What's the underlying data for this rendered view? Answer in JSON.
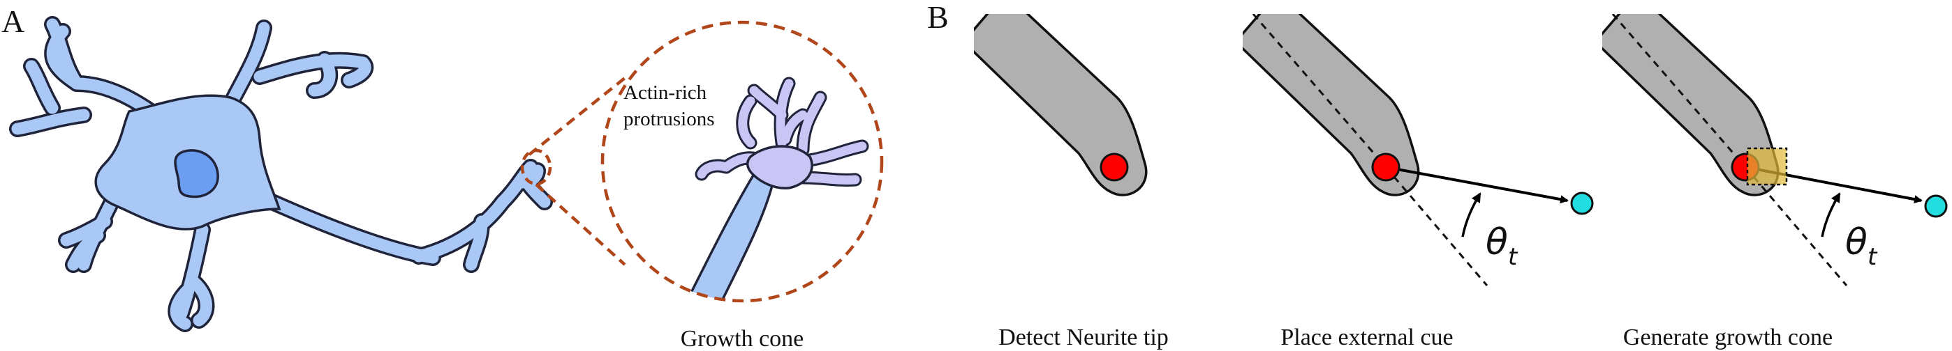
{
  "panel_a": {
    "letter": "A",
    "protrusion_label_line1": "Actin-rich",
    "protrusion_label_line2": "protrusions",
    "caption": "Growth cone"
  },
  "panel_b": {
    "letter": "B",
    "steps": [
      {
        "caption": "Detect Neurite tip"
      },
      {
        "caption": "Place external cue",
        "angle_symbol": "θ",
        "angle_subscript": "t"
      },
      {
        "caption": "Generate growth cone",
        "angle_symbol": "θ",
        "angle_subscript": "t"
      }
    ]
  },
  "colors": {
    "neuron_fill": "#a9c8f5",
    "nucleus_fill": "#6b9ef0",
    "growth_cone_fill": "#c9c6f5",
    "callout_stroke": "#b0461a",
    "neurite_fill": "#b0b0b0",
    "tip_marker": "#ff0000",
    "cue_marker": "#22dde0",
    "growth_cone_box": "#e0b83a"
  }
}
